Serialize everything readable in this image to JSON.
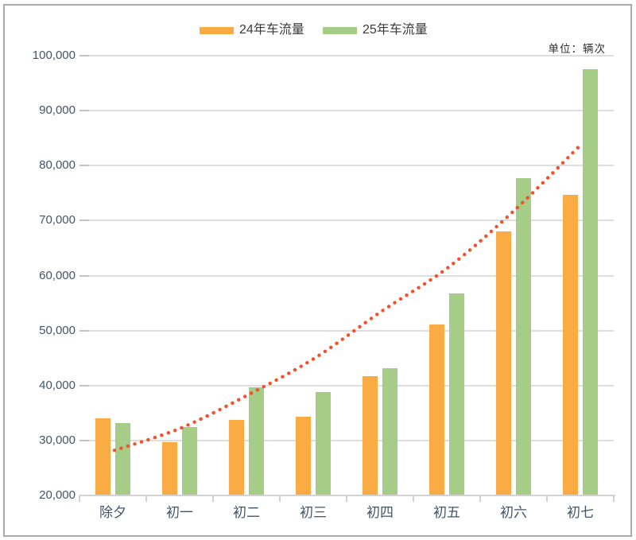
{
  "unit_label": "单位：辆次",
  "colors": {
    "bar_2024": "#faab44",
    "bar_2025": "#a6cd87",
    "trend": "#f4502a",
    "gridline": "#dedede",
    "axis_label": "#44546a",
    "frame_border": "#ababab"
  },
  "chart_data": {
    "type": "bar",
    "title": "",
    "xlabel": "",
    "ylabel": "",
    "categories": [
      "除夕",
      "初一",
      "初二",
      "初三",
      "初四",
      "初五",
      "初六",
      "初七"
    ],
    "series": [
      {
        "name": "24年车流量",
        "color": "#faab44",
        "values": [
          34100,
          29700,
          33800,
          34300,
          41700,
          51100,
          68100,
          74700
        ]
      },
      {
        "name": "25年车流量",
        "color": "#a6cd87",
        "values": [
          33100,
          32400,
          39700,
          38800,
          43200,
          56800,
          77700,
          97600
        ]
      }
    ],
    "trend": {
      "name": "trend-line",
      "style": "dotted",
      "color": "#f4502a",
      "values": [
        28200,
        32300,
        38300,
        45000,
        53500,
        61500,
        72000,
        84000
      ]
    },
    "ylim": [
      20000,
      100000
    ],
    "ytick_step": 10000,
    "ytick_labels": [
      "20,000",
      "30,000",
      "40,000",
      "50,000",
      "60,000",
      "70,000",
      "80,000",
      "90,000",
      "100,000"
    ],
    "grid": true,
    "legend_position": "top-center",
    "unit": "单位：辆次"
  }
}
